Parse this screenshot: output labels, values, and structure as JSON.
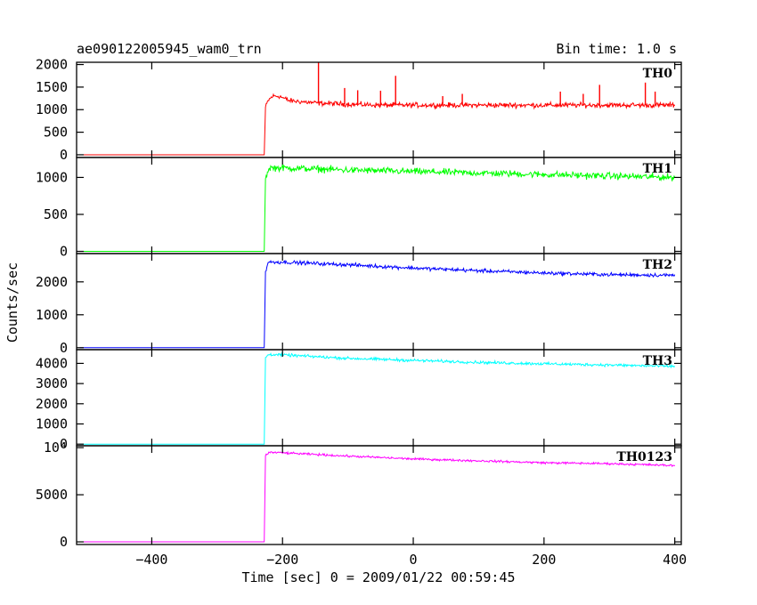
{
  "header": {
    "title": "ae090122005945_wam0_trn",
    "bin_time": "Bin time: 1.0 s"
  },
  "chart_data": {
    "type": "line",
    "xlabel": "Time [sec] 0 = 2009/01/22 00:59:45",
    "ylabel": "Counts/sec",
    "xlim": [
      -515,
      410
    ],
    "x_ticks": [
      -400,
      -200,
      0,
      200,
      400
    ],
    "x_tick_labels": [
      "−400",
      "−200",
      "0",
      "200",
      "400"
    ],
    "grid": false,
    "onset_time": -228,
    "panels": [
      {
        "name": "TH0",
        "color": "#ff0000",
        "ylim": [
          -60,
          2050
        ],
        "y_ticks": [
          0,
          500,
          1000,
          1500,
          2000
        ],
        "y_tick_labels": [
          "0",
          "500",
          "1000",
          "1500",
          "2000"
        ],
        "pre_level": 0,
        "points": [
          [
            -510,
            0
          ],
          [
            -228,
            0
          ],
          [
            -226,
            1050
          ],
          [
            -222,
            1200
          ],
          [
            -215,
            1300
          ],
          [
            -205,
            1300
          ],
          [
            -190,
            1200
          ],
          [
            -150,
            1150
          ],
          [
            -100,
            1120
          ],
          [
            -50,
            1100
          ],
          [
            0,
            1100
          ],
          [
            100,
            1100
          ],
          [
            200,
            1100
          ],
          [
            300,
            1100
          ],
          [
            400,
            1100
          ]
        ],
        "spikes": [
          [
            -145,
            2050
          ],
          [
            -27,
            1750
          ],
          [
            -105,
            1480
          ],
          [
            -85,
            1430
          ],
          [
            -50,
            1420
          ],
          [
            45,
            1300
          ],
          [
            75,
            1350
          ],
          [
            225,
            1400
          ],
          [
            260,
            1350
          ],
          [
            285,
            1550
          ],
          [
            355,
            1600
          ],
          [
            370,
            1400
          ]
        ],
        "noise": 55
      },
      {
        "name": "TH1",
        "color": "#00ff00",
        "ylim": [
          -30,
          1270
        ],
        "y_ticks": [
          0,
          500,
          1000
        ],
        "y_tick_labels": [
          "0",
          "500",
          "1000"
        ],
        "pre_level": 0,
        "points": [
          [
            -510,
            0
          ],
          [
            -228,
            0
          ],
          [
            -226,
            1000
          ],
          [
            -220,
            1130
          ],
          [
            -200,
            1130
          ],
          [
            -100,
            1100
          ],
          [
            0,
            1080
          ],
          [
            100,
            1060
          ],
          [
            200,
            1040
          ],
          [
            300,
            1020
          ],
          [
            400,
            1000
          ]
        ],
        "spikes": [],
        "noise": 45
      },
      {
        "name": "TH2",
        "color": "#0000ff",
        "ylim": [
          -60,
          2860
        ],
        "y_ticks": [
          0,
          1000,
          2000
        ],
        "y_tick_labels": [
          "0",
          "1000",
          "2000"
        ],
        "pre_level": 0,
        "points": [
          [
            -510,
            0
          ],
          [
            -228,
            0
          ],
          [
            -226,
            2300
          ],
          [
            -222,
            2600
          ],
          [
            -200,
            2600
          ],
          [
            -100,
            2520
          ],
          [
            0,
            2420
          ],
          [
            100,
            2340
          ],
          [
            200,
            2270
          ],
          [
            300,
            2220
          ],
          [
            400,
            2200
          ]
        ],
        "spikes": [],
        "noise": 55
      },
      {
        "name": "TH3",
        "color": "#00ffff",
        "ylim": [
          -80,
          4680
        ],
        "y_ticks": [
          0,
          1000,
          2000,
          3000,
          4000
        ],
        "y_tick_labels": [
          "0",
          "1000",
          "2000",
          "3000",
          "4000"
        ],
        "pre_level": 0,
        "points": [
          [
            -510,
            0
          ],
          [
            -228,
            0
          ],
          [
            -226,
            4300
          ],
          [
            -220,
            4450
          ],
          [
            -200,
            4420
          ],
          [
            -100,
            4250
          ],
          [
            0,
            4150
          ],
          [
            100,
            4050
          ],
          [
            200,
            3980
          ],
          [
            300,
            3920
          ],
          [
            400,
            3850
          ]
        ],
        "spikes": [],
        "noise": 70
      },
      {
        "name": "TH0123",
        "color": "#ff00ff",
        "ylim": [
          -280,
          10200
        ],
        "y_ticks": [
          0,
          5000,
          10000
        ],
        "y_tick_labels": [
          "0",
          "5000",
          "10⁴"
        ],
        "pre_level": 0,
        "points": [
          [
            -510,
            0
          ],
          [
            -228,
            0
          ],
          [
            -226,
            9200
          ],
          [
            -220,
            9500
          ],
          [
            -200,
            9450
          ],
          [
            -100,
            9100
          ],
          [
            0,
            8800
          ],
          [
            100,
            8600
          ],
          [
            200,
            8400
          ],
          [
            300,
            8300
          ],
          [
            400,
            8100
          ]
        ],
        "spikes": [],
        "noise": 110
      }
    ]
  }
}
